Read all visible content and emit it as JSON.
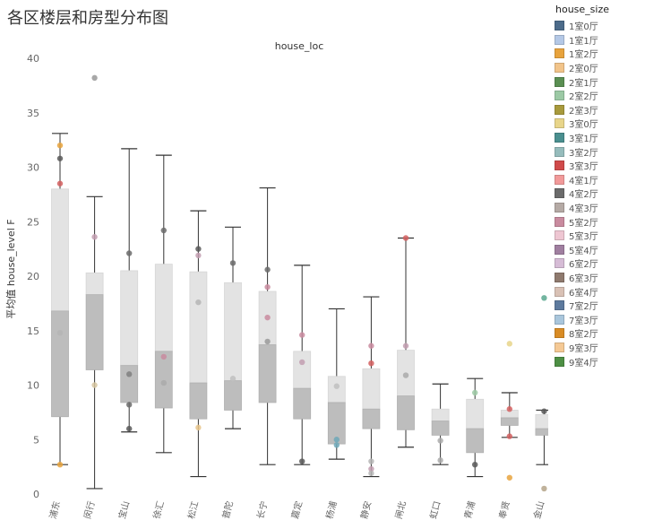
{
  "title": "各区楼层和房型分布图",
  "chart_data": {
    "type": "box",
    "subtitle": "house_loc",
    "ylabel": "平均值 house_level F",
    "ylim": [
      0,
      40
    ],
    "yticks": [
      0,
      5,
      10,
      15,
      20,
      25,
      30,
      35,
      40
    ],
    "categories": [
      "浦东",
      "闵行",
      "宝山",
      "徐汇",
      "松江",
      "普陀",
      "长宁",
      "嘉定",
      "杨浦",
      "静安",
      "闸北",
      "虹口",
      "青浦",
      "奉贤",
      "金山"
    ],
    "boxes": [
      {
        "min": 2.7,
        "q1": 7.1,
        "median": 16.8,
        "q3": 28.0,
        "max": 33.1
      },
      {
        "min": 0.5,
        "q1": 11.4,
        "median": 18.3,
        "q3": 20.3,
        "max": 27.3
      },
      {
        "min": 5.7,
        "q1": 8.4,
        "median": 11.8,
        "q3": 20.5,
        "max": 31.7
      },
      {
        "min": 3.8,
        "q1": 7.9,
        "median": 13.1,
        "q3": 21.1,
        "max": 31.1
      },
      {
        "min": 1.6,
        "q1": 6.9,
        "median": 10.2,
        "q3": 20.4,
        "max": 26.0
      },
      {
        "min": 6.0,
        "q1": 7.7,
        "median": 10.4,
        "q3": 19.4,
        "max": 24.5
      },
      {
        "min": 2.7,
        "q1": 8.4,
        "median": 13.7,
        "q3": 18.6,
        "max": 28.1
      },
      {
        "min": 2.7,
        "q1": 6.9,
        "median": 9.7,
        "q3": 13.1,
        "max": 21.0
      },
      {
        "min": 3.2,
        "q1": 4.6,
        "median": 8.4,
        "q3": 10.8,
        "max": 17.0
      },
      {
        "min": 1.6,
        "q1": 6.0,
        "median": 7.8,
        "q3": 11.5,
        "max": 18.1
      },
      {
        "min": 4.3,
        "q1": 5.9,
        "median": 9.0,
        "q3": 13.2,
        "max": 23.5
      },
      {
        "min": 2.7,
        "q1": 5.4,
        "median": 6.7,
        "q3": 7.8,
        "max": 10.1
      },
      {
        "min": 1.6,
        "q1": 3.8,
        "median": 6.0,
        "q3": 8.7,
        "max": 10.6
      },
      {
        "min": 5.2,
        "q1": 6.3,
        "median": 7.0,
        "q3": 7.7,
        "max": 9.3
      },
      {
        "min": 2.7,
        "q1": 5.4,
        "median": 6.0,
        "q3": 7.3,
        "max": 7.7
      }
    ],
    "points": [
      {
        "cat": 0,
        "y": 32.0,
        "color": "#e8a33d"
      },
      {
        "cat": 0,
        "y": 30.8,
        "color": "#595959"
      },
      {
        "cat": 0,
        "y": 28.5,
        "color": "#d35f5f"
      },
      {
        "cat": 0,
        "y": 14.8,
        "color": "#b5b5b5"
      },
      {
        "cat": 0,
        "y": 2.7,
        "color": "#e8a33d"
      },
      {
        "cat": 1,
        "y": 38.2,
        "color": "#999999"
      },
      {
        "cat": 1,
        "y": 23.6,
        "color": "#c29db0"
      },
      {
        "cat": 1,
        "y": 10.0,
        "color": "#d6c6a0"
      },
      {
        "cat": 2,
        "y": 22.1,
        "color": "#6b6b6b"
      },
      {
        "cat": 2,
        "y": 11.0,
        "color": "#808080"
      },
      {
        "cat": 2,
        "y": 8.2,
        "color": "#6b6b6b"
      },
      {
        "cat": 2,
        "y": 6.0,
        "color": "#595959"
      },
      {
        "cat": 3,
        "y": 24.2,
        "color": "#6b6b6b"
      },
      {
        "cat": 3,
        "y": 12.6,
        "color": "#c98b9f"
      },
      {
        "cat": 3,
        "y": 10.2,
        "color": "#aaaaaa"
      },
      {
        "cat": 4,
        "y": 22.5,
        "color": "#595959"
      },
      {
        "cat": 4,
        "y": 21.9,
        "color": "#c29db0"
      },
      {
        "cat": 4,
        "y": 17.6,
        "color": "#b5b5b5"
      },
      {
        "cat": 4,
        "y": 6.1,
        "color": "#e8c48a"
      },
      {
        "cat": 5,
        "y": 21.2,
        "color": "#6b6b6b"
      },
      {
        "cat": 5,
        "y": 10.6,
        "color": "#bfbfbf"
      },
      {
        "cat": 6,
        "y": 20.6,
        "color": "#6b6b6b"
      },
      {
        "cat": 6,
        "y": 19.0,
        "color": "#c98b9f"
      },
      {
        "cat": 6,
        "y": 16.2,
        "color": "#c98b9f"
      },
      {
        "cat": 6,
        "y": 14.0,
        "color": "#9a9a9a"
      },
      {
        "cat": 7,
        "y": 14.6,
        "color": "#c98b9f"
      },
      {
        "cat": 7,
        "y": 12.1,
        "color": "#c29db0"
      },
      {
        "cat": 7,
        "y": 3.0,
        "color": "#595959"
      },
      {
        "cat": 8,
        "y": 9.9,
        "color": "#bfbfbf"
      },
      {
        "cat": 8,
        "y": 5.0,
        "color": "#6ea8b8"
      },
      {
        "cat": 8,
        "y": 4.5,
        "color": "#6ea8b8"
      },
      {
        "cat": 9,
        "y": 13.6,
        "color": "#c98b9f"
      },
      {
        "cat": 9,
        "y": 12.0,
        "color": "#d35f5f"
      },
      {
        "cat": 9,
        "y": 3.0,
        "color": "#b5b5b5"
      },
      {
        "cat": 9,
        "y": 2.3,
        "color": "#c29db0"
      },
      {
        "cat": 9,
        "y": 1.9,
        "color": "#b5b5b5"
      },
      {
        "cat": 10,
        "y": 23.5,
        "color": "#d35f5f"
      },
      {
        "cat": 10,
        "y": 13.6,
        "color": "#c29db0"
      },
      {
        "cat": 10,
        "y": 10.9,
        "color": "#aaaaaa"
      },
      {
        "cat": 11,
        "y": 4.9,
        "color": "#aaaaaa"
      },
      {
        "cat": 11,
        "y": 3.1,
        "color": "#aaaaaa"
      },
      {
        "cat": 12,
        "y": 9.3,
        "color": "#9cc9a5"
      },
      {
        "cat": 12,
        "y": 2.7,
        "color": "#595959"
      },
      {
        "cat": 13,
        "y": 13.8,
        "color": "#e8d58a"
      },
      {
        "cat": 13,
        "y": 7.8,
        "color": "#d35f5f"
      },
      {
        "cat": 13,
        "y": 5.3,
        "color": "#d35f5f"
      },
      {
        "cat": 13,
        "y": 1.5,
        "color": "#e8a33d"
      },
      {
        "cat": 14,
        "y": 18.0,
        "color": "#5aa88f"
      },
      {
        "cat": 14,
        "y": 7.6,
        "color": "#595959"
      },
      {
        "cat": 14,
        "y": 0.5,
        "color": "#b5a58a"
      }
    ],
    "legend": {
      "title": "house_size",
      "items": [
        {
          "label": "1室0厅",
          "color": "#4c6b8a"
        },
        {
          "label": "1室1厅",
          "color": "#b4c8e6"
        },
        {
          "label": "1室2厅",
          "color": "#e8a33d"
        },
        {
          "label": "2室0厅",
          "color": "#f2c48a"
        },
        {
          "label": "2室1厅",
          "color": "#5a8f52"
        },
        {
          "label": "2室2厅",
          "color": "#9cc9a5"
        },
        {
          "label": "2室3厅",
          "color": "#a89a3c"
        },
        {
          "label": "3室0厅",
          "color": "#e8d58a"
        },
        {
          "label": "3室1厅",
          "color": "#4a8f8f"
        },
        {
          "label": "3室2厅",
          "color": "#96bcbc"
        },
        {
          "label": "3室3厅",
          "color": "#d04a4a"
        },
        {
          "label": "4室1厅",
          "color": "#f29a9a"
        },
        {
          "label": "4室2厅",
          "color": "#6b6b6b"
        },
        {
          "label": "4室3厅",
          "color": "#b5aaa5"
        },
        {
          "label": "5室2厅",
          "color": "#c98b9f"
        },
        {
          "label": "5室3厅",
          "color": "#eec6d2"
        },
        {
          "label": "5室4厅",
          "color": "#a07fa0"
        },
        {
          "label": "6室2厅",
          "color": "#d6bcd6"
        },
        {
          "label": "6室3厅",
          "color": "#8f7a6e"
        },
        {
          "label": "6室4厅",
          "color": "#d9c1b5"
        },
        {
          "label": "7室2厅",
          "color": "#5d7a9e"
        },
        {
          "label": "7室3厅",
          "color": "#a9c6dc"
        },
        {
          "label": "8室2厅",
          "color": "#d98c25"
        },
        {
          "label": "9室3厅",
          "color": "#f5c995"
        },
        {
          "label": "9室4厅",
          "color": "#4d8f44"
        }
      ]
    }
  }
}
